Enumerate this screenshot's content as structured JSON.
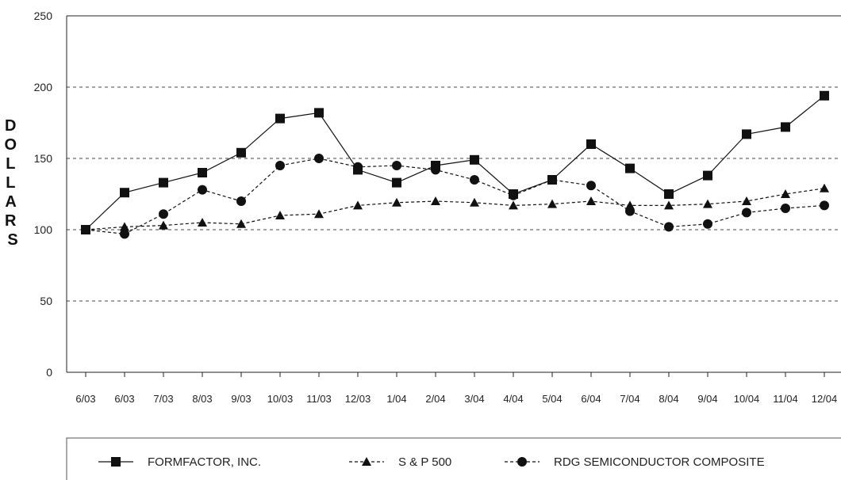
{
  "chart_data": {
    "type": "line",
    "ylabel": "DOLLARS",
    "ylim": [
      0,
      250
    ],
    "yticks": [
      0,
      50,
      100,
      150,
      200,
      250
    ],
    "grid": "horizontal dashed",
    "legend_position": "bottom",
    "categories": [
      "6/03",
      "6/03",
      "7/03",
      "8/03",
      "9/03",
      "10/03",
      "11/03",
      "12/03",
      "1/04",
      "2/04",
      "3/04",
      "4/04",
      "5/04",
      "6/04",
      "7/04",
      "8/04",
      "9/04",
      "10/04",
      "11/04",
      "12/04"
    ],
    "series": [
      {
        "name": "FORMFACTOR, INC.",
        "marker": "square",
        "line": "solid",
        "values": [
          100,
          126,
          133,
          140,
          154,
          178,
          182,
          142,
          133,
          145,
          149,
          125,
          135,
          160,
          143,
          125,
          138,
          167,
          172,
          194
        ]
      },
      {
        "name": "S & P 500",
        "marker": "triangle",
        "line": "dashed",
        "values": [
          100,
          102,
          103,
          105,
          104,
          110,
          111,
          117,
          119,
          120,
          119,
          117,
          118,
          120,
          117,
          117,
          118,
          120,
          125,
          129
        ]
      },
      {
        "name": "RDG SEMICONDUCTOR COMPOSITE",
        "marker": "circle",
        "line": "dashed",
        "values": [
          100,
          97,
          111,
          128,
          120,
          145,
          150,
          144,
          145,
          142,
          135,
          124,
          135,
          131,
          113,
          102,
          104,
          112,
          115,
          117
        ]
      }
    ]
  }
}
